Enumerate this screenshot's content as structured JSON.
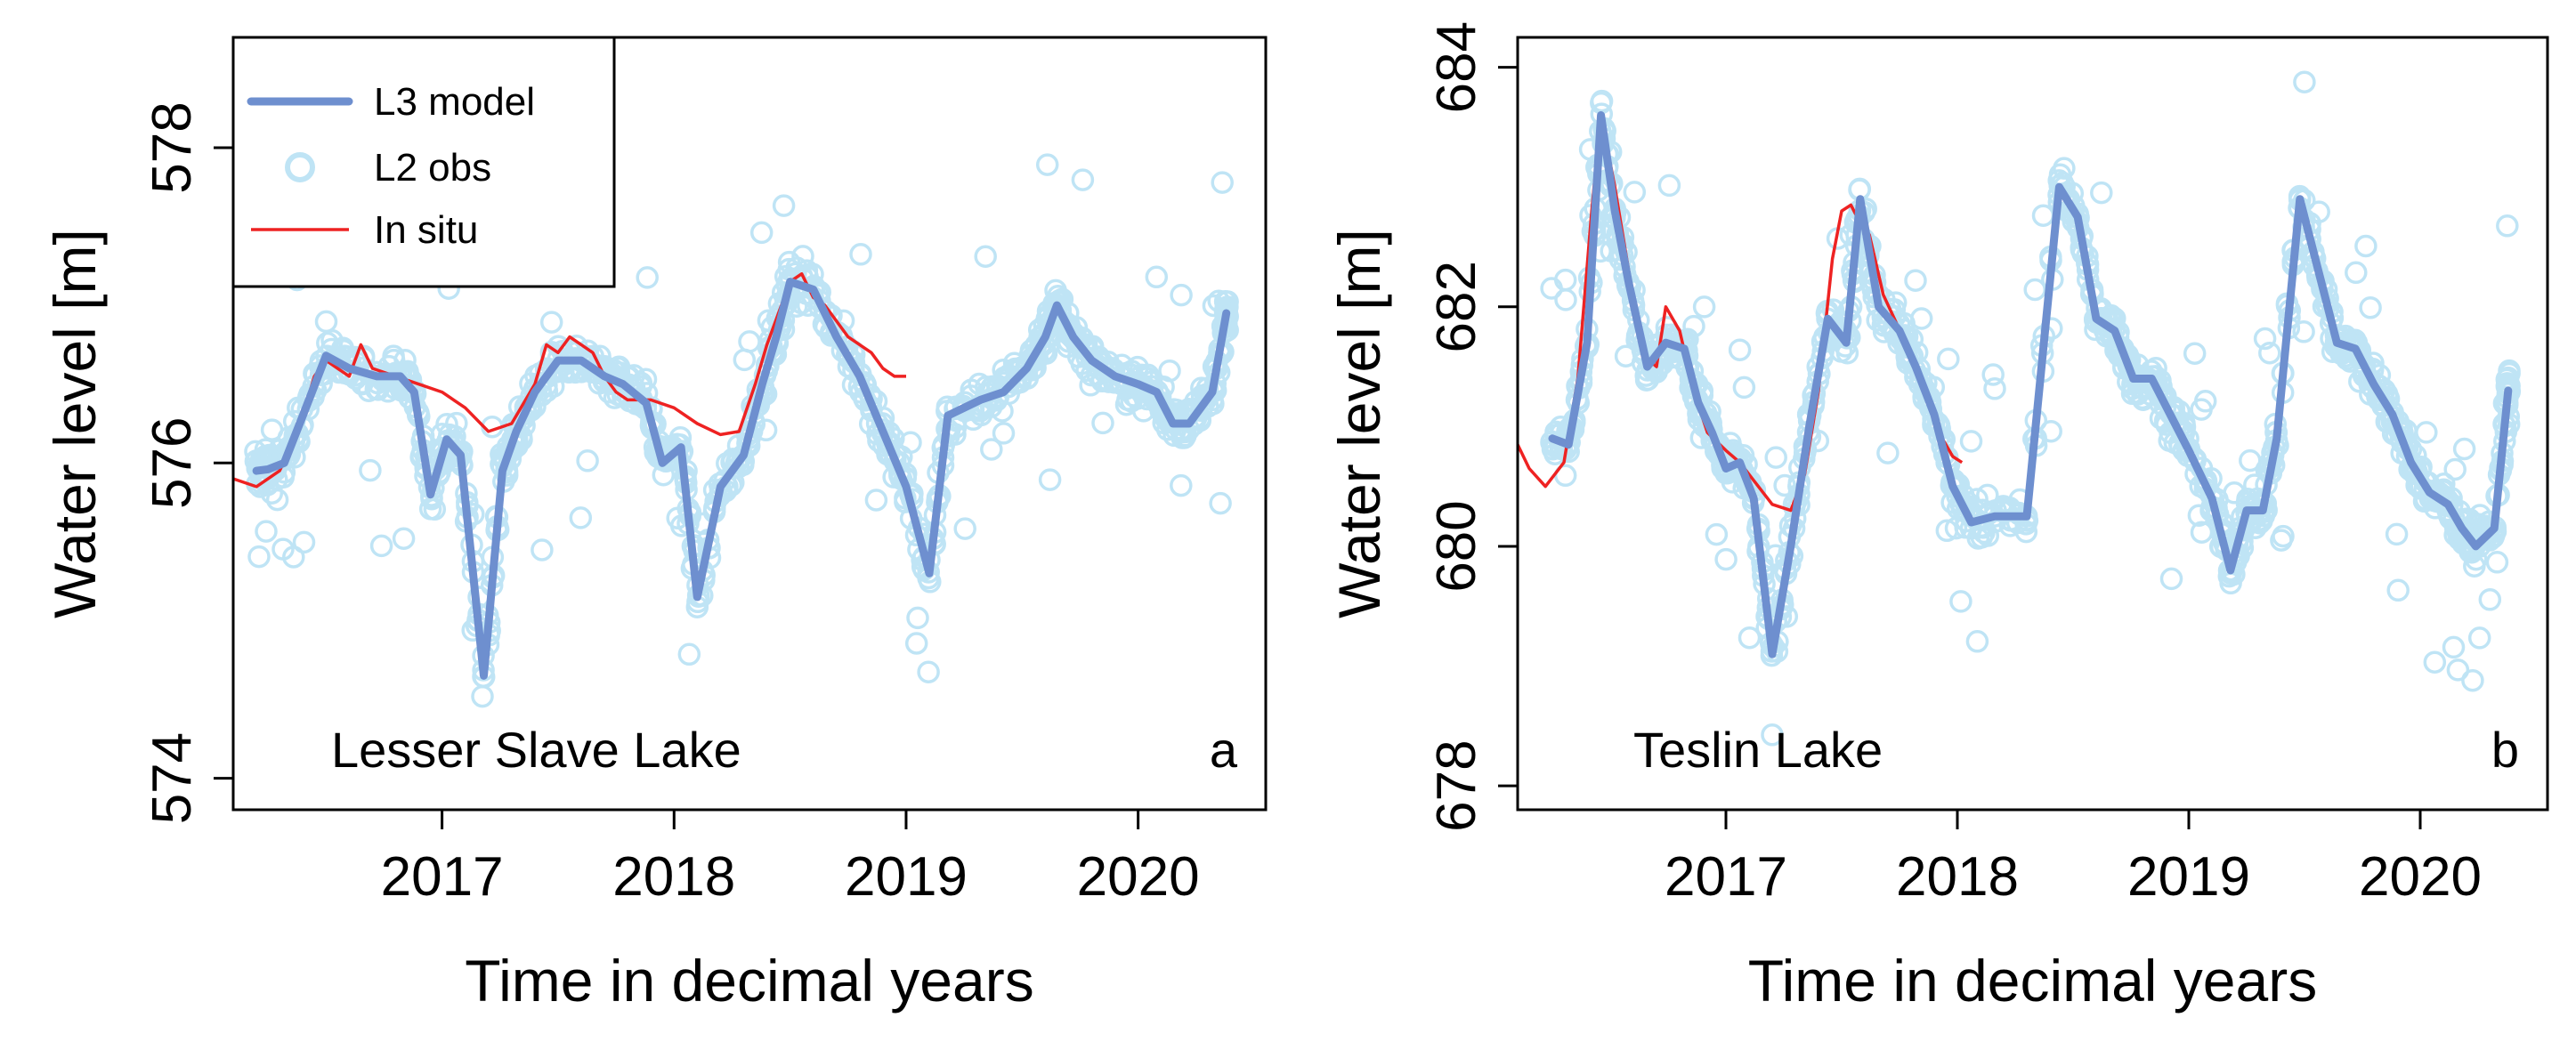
{
  "colors": {
    "model": "#6e8fcf",
    "obs": "#bfe4f5",
    "insitu": "#ee2222",
    "axis": "#000000"
  },
  "chart_data": [
    {
      "type": "line",
      "panel_label": "a",
      "lake_name": "Lesser Slave Lake",
      "xlabel": "Time in decimal years",
      "ylabel": "Water level [m]",
      "xlim": [
        2016.1,
        2020.55
      ],
      "ylim": [
        573.8,
        578.7
      ],
      "x_ticks": [
        2017,
        2018,
        2019,
        2020
      ],
      "y_ticks": [
        574,
        576,
        578
      ],
      "legend": {
        "position": "top-left",
        "model": "L3 model",
        "obs": "L2 obs",
        "insitu": "In situ"
      },
      "model": [
        [
          2016.2,
          575.95
        ],
        [
          2016.25,
          575.96
        ],
        [
          2016.32,
          576.0
        ],
        [
          2016.4,
          576.3
        ],
        [
          2016.5,
          576.68
        ],
        [
          2016.6,
          576.6
        ],
        [
          2016.72,
          576.55
        ],
        [
          2016.82,
          576.55
        ],
        [
          2016.88,
          576.45
        ],
        [
          2016.95,
          575.8
        ],
        [
          2017.02,
          576.15
        ],
        [
          2017.08,
          576.05
        ],
        [
          2017.18,
          574.65
        ],
        [
          2017.26,
          575.95
        ],
        [
          2017.32,
          576.2
        ],
        [
          2017.4,
          576.45
        ],
        [
          2017.5,
          576.65
        ],
        [
          2017.6,
          576.65
        ],
        [
          2017.7,
          576.55
        ],
        [
          2017.78,
          576.5
        ],
        [
          2017.88,
          576.38
        ],
        [
          2017.95,
          576.0
        ],
        [
          2018.03,
          576.1
        ],
        [
          2018.1,
          575.15
        ],
        [
          2018.2,
          575.85
        ],
        [
          2018.3,
          576.05
        ],
        [
          2018.38,
          576.5
        ],
        [
          2018.44,
          576.8
        ],
        [
          2018.5,
          577.15
        ],
        [
          2018.6,
          577.1
        ],
        [
          2018.7,
          576.8
        ],
        [
          2018.8,
          576.55
        ],
        [
          2018.9,
          576.2
        ],
        [
          2019.0,
          575.85
        ],
        [
          2019.1,
          575.3
        ],
        [
          2019.18,
          576.3
        ],
        [
          2019.32,
          576.4
        ],
        [
          2019.42,
          576.45
        ],
        [
          2019.52,
          576.6
        ],
        [
          2019.6,
          576.8
        ],
        [
          2019.65,
          577.0
        ],
        [
          2019.72,
          576.8
        ],
        [
          2019.8,
          576.65
        ],
        [
          2019.9,
          576.55
        ],
        [
          2020.0,
          576.5
        ],
        [
          2020.08,
          576.45
        ],
        [
          2020.15,
          576.25
        ],
        [
          2020.22,
          576.25
        ],
        [
          2020.32,
          576.45
        ],
        [
          2020.38,
          576.95
        ]
      ],
      "insitu": [
        [
          2016.1,
          575.9
        ],
        [
          2016.2,
          575.85
        ],
        [
          2016.3,
          575.95
        ],
        [
          2016.38,
          576.2
        ],
        [
          2016.45,
          576.55
        ],
        [
          2016.5,
          576.65
        ],
        [
          2016.55,
          576.6
        ],
        [
          2016.6,
          576.55
        ],
        [
          2016.65,
          576.75
        ],
        [
          2016.7,
          576.6
        ],
        [
          2016.8,
          576.55
        ],
        [
          2016.9,
          576.5
        ],
        [
          2017.0,
          576.45
        ],
        [
          2017.1,
          576.35
        ],
        [
          2017.2,
          576.2
        ],
        [
          2017.3,
          576.25
        ],
        [
          2017.4,
          576.5
        ],
        [
          2017.45,
          576.75
        ],
        [
          2017.5,
          576.7
        ],
        [
          2017.55,
          576.8
        ],
        [
          2017.6,
          576.75
        ],
        [
          2017.65,
          576.7
        ],
        [
          2017.7,
          576.55
        ],
        [
          2017.75,
          576.45
        ],
        [
          2017.8,
          576.4
        ],
        [
          2017.9,
          576.4
        ],
        [
          2018.0,
          576.35
        ],
        [
          2018.1,
          576.25
        ],
        [
          2018.2,
          576.18
        ],
        [
          2018.28,
          576.2
        ],
        [
          2018.35,
          576.5
        ],
        [
          2018.4,
          576.75
        ],
        [
          2018.45,
          576.95
        ],
        [
          2018.5,
          577.15
        ],
        [
          2018.55,
          577.2
        ],
        [
          2018.6,
          577.05
        ],
        [
          2018.65,
          577.0
        ],
        [
          2018.7,
          576.9
        ],
        [
          2018.75,
          576.8
        ],
        [
          2018.8,
          576.75
        ],
        [
          2018.85,
          576.7
        ],
        [
          2018.9,
          576.6
        ],
        [
          2018.95,
          576.55
        ],
        [
          2019.0,
          576.55
        ]
      ]
    },
    {
      "type": "line",
      "panel_label": "b",
      "lake_name": "Teslin Lake",
      "xlabel": "Time in decimal years",
      "ylabel": "Water level [m]",
      "xlim": [
        2016.1,
        2020.55
      ],
      "ylim": [
        677.8,
        684.25
      ],
      "x_ticks": [
        2017,
        2018,
        2019,
        2020
      ],
      "y_ticks": [
        678,
        680,
        682,
        684
      ],
      "model": [
        [
          2016.25,
          680.9
        ],
        [
          2016.32,
          680.85
        ],
        [
          2016.4,
          681.7
        ],
        [
          2016.46,
          683.6
        ],
        [
          2016.52,
          682.8
        ],
        [
          2016.58,
          682.2
        ],
        [
          2016.66,
          681.5
        ],
        [
          2016.74,
          681.7
        ],
        [
          2016.82,
          681.65
        ],
        [
          2016.88,
          681.2
        ],
        [
          2016.94,
          680.95
        ],
        [
          2017.0,
          680.65
        ],
        [
          2017.06,
          680.7
        ],
        [
          2017.12,
          680.4
        ],
        [
          2017.2,
          679.1
        ],
        [
          2017.28,
          680.0
        ],
        [
          2017.36,
          681.0
        ],
        [
          2017.44,
          681.9
        ],
        [
          2017.52,
          681.7
        ],
        [
          2017.58,
          682.9
        ],
        [
          2017.66,
          682.0
        ],
        [
          2017.75,
          681.8
        ],
        [
          2017.82,
          681.5
        ],
        [
          2017.9,
          681.1
        ],
        [
          2017.98,
          680.5
        ],
        [
          2018.06,
          680.2
        ],
        [
          2018.16,
          680.25
        ],
        [
          2018.3,
          680.25
        ],
        [
          2018.44,
          683.0
        ],
        [
          2018.52,
          682.75
        ],
        [
          2018.6,
          681.9
        ],
        [
          2018.68,
          681.8
        ],
        [
          2018.76,
          681.4
        ],
        [
          2018.84,
          681.4
        ],
        [
          2018.92,
          681.1
        ],
        [
          2019.0,
          680.8
        ],
        [
          2019.1,
          680.4
        ],
        [
          2019.18,
          679.8
        ],
        [
          2019.25,
          680.3
        ],
        [
          2019.32,
          680.3
        ],
        [
          2019.38,
          680.9
        ],
        [
          2019.48,
          682.9
        ],
        [
          2019.56,
          682.3
        ],
        [
          2019.64,
          681.7
        ],
        [
          2019.72,
          681.65
        ],
        [
          2019.8,
          681.35
        ],
        [
          2019.88,
          681.1
        ],
        [
          2019.96,
          680.7
        ],
        [
          2020.04,
          680.45
        ],
        [
          2020.12,
          680.35
        ],
        [
          2020.18,
          680.15
        ],
        [
          2020.24,
          680.0
        ],
        [
          2020.32,
          680.15
        ],
        [
          2020.38,
          681.3
        ]
      ],
      "insitu": [
        [
          2016.1,
          680.85
        ],
        [
          2016.15,
          680.65
        ],
        [
          2016.22,
          680.5
        ],
        [
          2016.3,
          680.7
        ],
        [
          2016.36,
          681.4
        ],
        [
          2016.42,
          682.8
        ],
        [
          2016.46,
          683.6
        ],
        [
          2016.52,
          683.0
        ],
        [
          2016.58,
          682.3
        ],
        [
          2016.64,
          681.6
        ],
        [
          2016.7,
          681.5
        ],
        [
          2016.74,
          682.0
        ],
        [
          2016.8,
          681.8
        ],
        [
          2016.86,
          681.3
        ],
        [
          2016.92,
          680.95
        ],
        [
          2017.0,
          680.8
        ],
        [
          2017.06,
          680.7
        ],
        [
          2017.12,
          680.55
        ],
        [
          2017.2,
          680.35
        ],
        [
          2017.28,
          680.3
        ],
        [
          2017.34,
          680.6
        ],
        [
          2017.4,
          681.3
        ],
        [
          2017.46,
          682.4
        ],
        [
          2017.5,
          682.8
        ],
        [
          2017.54,
          682.85
        ],
        [
          2017.58,
          682.7
        ],
        [
          2017.62,
          682.6
        ],
        [
          2017.68,
          682.1
        ],
        [
          2017.74,
          681.85
        ],
        [
          2017.8,
          681.6
        ],
        [
          2017.86,
          681.3
        ],
        [
          2017.92,
          680.95
        ],
        [
          2017.98,
          680.75
        ],
        [
          2018.02,
          680.7
        ]
      ]
    }
  ]
}
